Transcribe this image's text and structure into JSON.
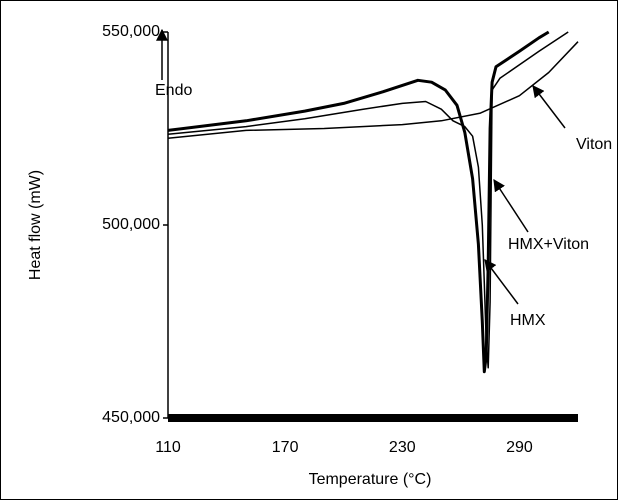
{
  "chart_data": {
    "type": "line",
    "xlabel": "Temperature (°C)",
    "ylabel": "Heat flow (mW)",
    "xlim": [
      110,
      320
    ],
    "xticks": [
      110,
      170,
      230,
      290
    ],
    "ylim": [
      450000,
      550000
    ],
    "yticks": [
      {
        "value": 450000,
        "label": "450,000"
      },
      {
        "value": 500000,
        "label": "500,000"
      },
      {
        "value": 550000,
        "label": "550,000"
      }
    ],
    "annotations": [
      "Endo",
      "Viton",
      "HMX+Viton",
      "HMX"
    ],
    "series": [
      {
        "name": "Viton",
        "color": "#000000",
        "x": [
          110,
          150,
          190,
          230,
          250,
          270,
          290,
          305,
          320
        ],
        "values": [
          522500,
          524500,
          525000,
          526000,
          527000,
          529000,
          533500,
          539500,
          547500
        ]
      },
      {
        "name": "HMX+Viton",
        "color": "#000000",
        "x": [
          110,
          150,
          180,
          200,
          220,
          238,
          245,
          252,
          258,
          262,
          266,
          269,
          271,
          272,
          273,
          274,
          275,
          276,
          278,
          290,
          300,
          305
        ],
        "values": [
          524500,
          527000,
          529500,
          531500,
          534500,
          537500,
          537000,
          535000,
          531000,
          524000,
          512000,
          495000,
          475000,
          462000,
          466000,
          490000,
          525000,
          537000,
          541000,
          545000,
          548500,
          550000
        ]
      },
      {
        "name": "HMX",
        "color": "#000000",
        "x": [
          110,
          150,
          180,
          210,
          230,
          242,
          250,
          256,
          262,
          266,
          269,
          271,
          272,
          273,
          274,
          275,
          276,
          280,
          300,
          315
        ],
        "values": [
          523500,
          525500,
          527500,
          530000,
          531500,
          532000,
          530000,
          527000,
          525500,
          523000,
          515000,
          500000,
          485000,
          470000,
          463000,
          480000,
          535000,
          538000,
          545000,
          550000
        ]
      }
    ]
  }
}
